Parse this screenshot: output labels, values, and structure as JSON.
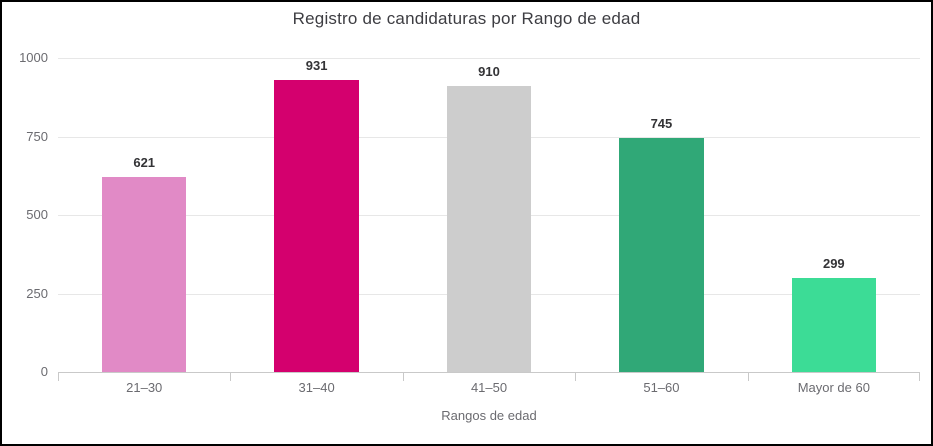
{
  "chart_data": {
    "type": "bar",
    "title": "Registro de candidaturas por Rango de edad",
    "categories": [
      "21–30",
      "31–40",
      "41–50",
      "51–60",
      "Mayor de 60"
    ],
    "values": [
      621,
      931,
      910,
      745,
      299
    ],
    "colors": [
      "#e18ac6",
      "#d4006e",
      "#cdcdcd",
      "#30a877",
      "#3cdc96"
    ],
    "xlabel": "Rangos de edad",
    "ylabel": "",
    "ylim": [
      0,
      1000
    ],
    "yticks": [
      "1000",
      "750",
      "500",
      "250",
      "0"
    ],
    "grid": "horizontal",
    "legend": "none",
    "value_labels": "above-bars",
    "background": "#ffffff",
    "frame_border": "#000000"
  }
}
